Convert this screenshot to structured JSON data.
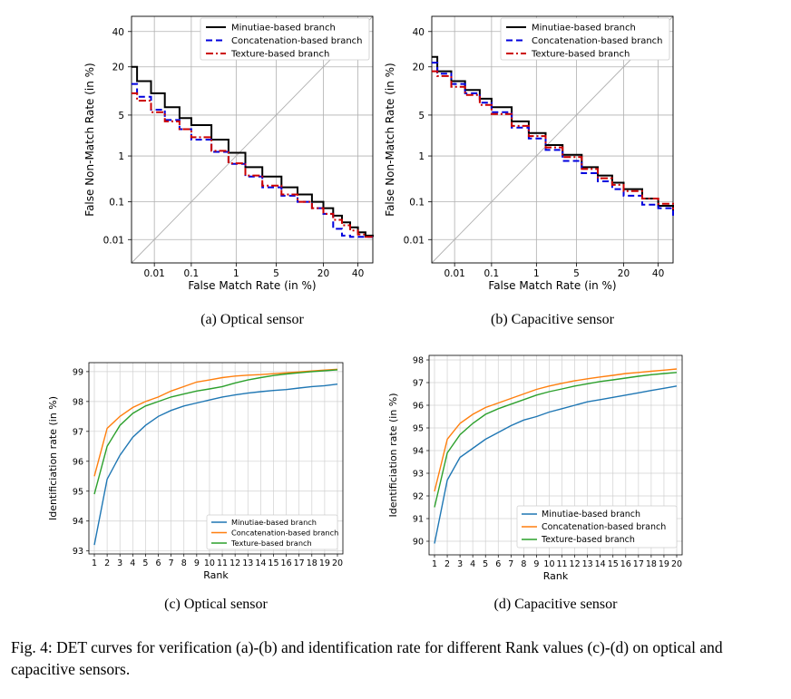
{
  "caption": "Fig. 4: DET curves for verification (a)-(b) and identification rate for different Rank values (c)-(d) on optical and capacitive sensors.",
  "colors": {
    "minutiae_det": "#000000",
    "concat_det": "#0000dd",
    "texture_det": "#cc0000",
    "blue": "#1f77b4",
    "orange": "#ff7f0e",
    "green": "#2ca02c",
    "grid": "#b0b0b0"
  },
  "chart_data": [
    {
      "type": "line",
      "subtitle": "(a) Optical sensor",
      "xlabel": "False Match Rate (in %)",
      "ylabel": "False Non-Match Rate (in %)",
      "xticks": [
        "0.01",
        "0.1",
        "1",
        "5",
        "20",
        "40"
      ],
      "yticks": [
        "0.01",
        "0.1",
        "1",
        "5",
        "20",
        "40"
      ],
      "legend": "top-right",
      "grid": true,
      "scale": "normal-deviate",
      "series": [
        {
          "name": "Minutiae-based branch",
          "style": "solid",
          "x": [
            0.001,
            0.003,
            0.008,
            0.02,
            0.05,
            0.1,
            0.3,
            0.7,
            1.5,
            3,
            6,
            10,
            15,
            20,
            25,
            30,
            35,
            40,
            45,
            50
          ],
          "y": [
            20,
            14,
            10,
            6.5,
            4.5,
            3.5,
            2,
            1.15,
            0.6,
            0.38,
            0.22,
            0.15,
            0.1,
            0.07,
            0.045,
            0.03,
            0.022,
            0.016,
            0.013,
            0.012
          ]
        },
        {
          "name": "Concatenation-based branch",
          "style": "dashed",
          "x": [
            0.001,
            0.003,
            0.008,
            0.02,
            0.05,
            0.1,
            0.3,
            0.7,
            1.5,
            3,
            6,
            10,
            15,
            20,
            25,
            30,
            35,
            40,
            45,
            50
          ],
          "y": [
            13,
            9,
            6,
            4.2,
            3,
            2,
            1.2,
            0.7,
            0.38,
            0.22,
            0.14,
            0.1,
            0.07,
            0.05,
            0.02,
            0.013,
            0.012,
            0.012,
            0.012,
            0.012
          ]
        },
        {
          "name": "Texture-based branch",
          "style": "dashdot",
          "x": [
            0.001,
            0.003,
            0.008,
            0.02,
            0.05,
            0.1,
            0.3,
            0.7,
            1.5,
            3,
            6,
            10,
            15,
            20,
            25,
            30,
            35,
            40,
            45,
            50
          ],
          "y": [
            10,
            8,
            5.5,
            4,
            3,
            2.2,
            1.25,
            0.72,
            0.4,
            0.24,
            0.15,
            0.1,
            0.07,
            0.05,
            0.035,
            0.025,
            0.018,
            0.014,
            0.012,
            0.012
          ]
        }
      ]
    },
    {
      "type": "line",
      "subtitle": "(b) Capacitive sensor",
      "xlabel": "False Match Rate (in %)",
      "ylabel": "False Non-Match Rate (in %)",
      "xticks": [
        "0.01",
        "0.1",
        "1",
        "5",
        "20",
        "40"
      ],
      "yticks": [
        "0.01",
        "0.1",
        "1",
        "5",
        "20",
        "40"
      ],
      "legend": "top-right",
      "grid": true,
      "scale": "normal-deviate",
      "series": [
        {
          "name": "Minutiae-based branch",
          "style": "solid",
          "x": [
            0.001,
            0.003,
            0.008,
            0.02,
            0.05,
            0.1,
            0.3,
            0.7,
            1.5,
            3,
            6,
            10,
            15,
            20,
            30,
            40,
            50
          ],
          "y": [
            25,
            18,
            14,
            11,
            8.5,
            6.5,
            4,
            2.6,
            1.6,
            1.05,
            0.6,
            0.4,
            0.28,
            0.2,
            0.12,
            0.08,
            0.06
          ]
        },
        {
          "name": "Concatenation-based branch",
          "style": "dashed",
          "x": [
            0.001,
            0.003,
            0.008,
            0.02,
            0.05,
            0.1,
            0.3,
            0.7,
            1.5,
            3,
            6,
            10,
            15,
            20,
            30,
            40,
            50
          ],
          "y": [
            22,
            17,
            13,
            10,
            7.5,
            5.5,
            3.2,
            2.1,
            1.3,
            0.8,
            0.45,
            0.3,
            0.2,
            0.14,
            0.085,
            0.07,
            0.045
          ]
        },
        {
          "name": "Texture-based branch",
          "style": "dashdot",
          "x": [
            0.001,
            0.003,
            0.008,
            0.02,
            0.05,
            0.1,
            0.3,
            0.7,
            1.5,
            3,
            6,
            10,
            15,
            20,
            30,
            40,
            50
          ],
          "y": [
            18,
            16,
            12,
            9.5,
            7,
            5.2,
            3.4,
            2.3,
            1.45,
            0.95,
            0.55,
            0.35,
            0.25,
            0.18,
            0.12,
            0.09,
            0.065
          ]
        }
      ]
    },
    {
      "type": "line",
      "subtitle": "(c) Optical sensor",
      "xlabel": "Rank",
      "ylabel": "Identificiation rate (in %)",
      "categories": [
        1,
        2,
        3,
        4,
        5,
        6,
        7,
        8,
        9,
        10,
        11,
        12,
        13,
        14,
        15,
        16,
        17,
        18,
        19,
        20
      ],
      "ylim": [
        92.9,
        99.3
      ],
      "yticks": [
        93,
        94,
        95,
        96,
        97,
        98,
        99
      ],
      "legend": "lower-right",
      "grid": true,
      "series": [
        {
          "name": "Minutiae-based branch",
          "color": "blue",
          "values": [
            93.2,
            95.4,
            96.2,
            96.8,
            97.2,
            97.5,
            97.7,
            97.85,
            97.95,
            98.05,
            98.15,
            98.22,
            98.28,
            98.33,
            98.37,
            98.4,
            98.45,
            98.5,
            98.53,
            98.58
          ]
        },
        {
          "name": "Concatenation-based branch",
          "color": "orange",
          "values": [
            95.5,
            97.1,
            97.5,
            97.8,
            98.0,
            98.15,
            98.35,
            98.5,
            98.65,
            98.72,
            98.8,
            98.85,
            98.88,
            98.9,
            98.93,
            98.96,
            98.99,
            99.02,
            99.05,
            99.08
          ]
        },
        {
          "name": "Texture-based branch",
          "color": "green",
          "values": [
            94.9,
            96.5,
            97.2,
            97.6,
            97.85,
            98.0,
            98.15,
            98.25,
            98.35,
            98.42,
            98.5,
            98.62,
            98.72,
            98.8,
            98.87,
            98.92,
            98.96,
            99.0,
            99.03,
            99.06
          ]
        }
      ]
    },
    {
      "type": "line",
      "subtitle": "(d) Capacitive sensor",
      "xlabel": "Rank",
      "ylabel": "Identificiation rate (in %)",
      "categories": [
        1,
        2,
        3,
        4,
        5,
        6,
        7,
        8,
        9,
        10,
        11,
        12,
        13,
        14,
        15,
        16,
        17,
        18,
        19,
        20
      ],
      "ylim": [
        89.4,
        98.2
      ],
      "yticks": [
        90,
        91,
        92,
        93,
        94,
        95,
        96,
        97,
        98
      ],
      "legend": "lower-right",
      "grid": true,
      "series": [
        {
          "name": "Minutiae-based branch",
          "color": "blue",
          "values": [
            89.9,
            92.7,
            93.7,
            94.1,
            94.5,
            94.8,
            95.1,
            95.35,
            95.5,
            95.7,
            95.85,
            96.0,
            96.15,
            96.25,
            96.35,
            96.45,
            96.55,
            96.65,
            96.75,
            96.85
          ]
        },
        {
          "name": "Concatenation-based branch",
          "color": "orange",
          "values": [
            92.2,
            94.5,
            95.2,
            95.6,
            95.9,
            96.1,
            96.3,
            96.5,
            96.7,
            96.85,
            96.97,
            97.08,
            97.17,
            97.25,
            97.32,
            97.4,
            97.45,
            97.5,
            97.55,
            97.6
          ]
        },
        {
          "name": "Texture-based branch",
          "color": "green",
          "values": [
            91.5,
            93.9,
            94.7,
            95.2,
            95.6,
            95.85,
            96.05,
            96.25,
            96.45,
            96.6,
            96.72,
            96.85,
            96.95,
            97.05,
            97.12,
            97.2,
            97.28,
            97.35,
            97.4,
            97.45
          ]
        }
      ]
    }
  ]
}
